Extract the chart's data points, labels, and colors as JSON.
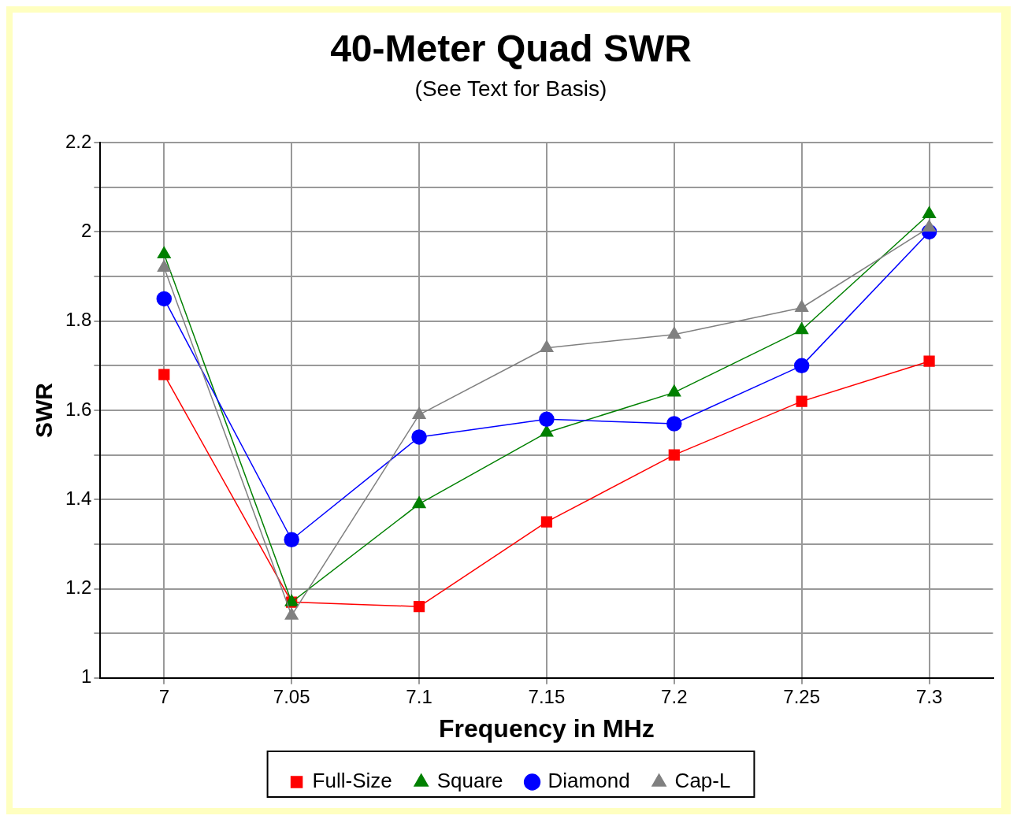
{
  "chart_data": {
    "type": "line",
    "title": "40-Meter Quad SWR",
    "subtitle": "(See Text for Basis)",
    "xlabel": "Frequency in MHz",
    "ylabel": "SWR",
    "x": [
      7,
      7.05,
      7.1,
      7.15,
      7.2,
      7.25,
      7.3
    ],
    "xlim": [
      6.975,
      7.325
    ],
    "xticks": [
      7,
      7.05,
      7.1,
      7.15,
      7.2,
      7.25,
      7.3
    ],
    "ylim": [
      1,
      2.2
    ],
    "yticks": [
      1,
      {
        "value": 1.1,
        "label": null
      },
      1.2,
      {
        "value": 1.3,
        "label": null
      },
      1.4,
      {
        "value": 1.5,
        "label": null
      },
      1.6,
      {
        "value": 1.7,
        "label": null
      },
      1.8,
      {
        "value": 1.9,
        "label": null
      },
      2,
      {
        "value": 2.1,
        "label": null
      },
      2.2
    ],
    "grid": true,
    "legend": "bottom",
    "line_style": "solid",
    "series": [
      {
        "name": "Full-Size",
        "color": "#ff0000",
        "marker": "square",
        "values": [
          1.68,
          1.17,
          1.16,
          1.35,
          1.5,
          1.62,
          1.71
        ]
      },
      {
        "name": "Square",
        "color": "#008000",
        "marker": "triangle",
        "values": [
          1.95,
          1.17,
          1.39,
          1.55,
          1.64,
          1.78,
          2.04
        ]
      },
      {
        "name": "Diamond",
        "color": "#0000ff",
        "marker": "circle",
        "values": [
          1.85,
          1.31,
          1.54,
          1.58,
          1.57,
          1.7,
          2.0
        ]
      },
      {
        "name": "Cap-L",
        "color": "#808080",
        "marker": "triangle",
        "values": [
          1.92,
          1.14,
          1.59,
          1.74,
          1.77,
          1.83,
          2.01
        ]
      }
    ]
  }
}
